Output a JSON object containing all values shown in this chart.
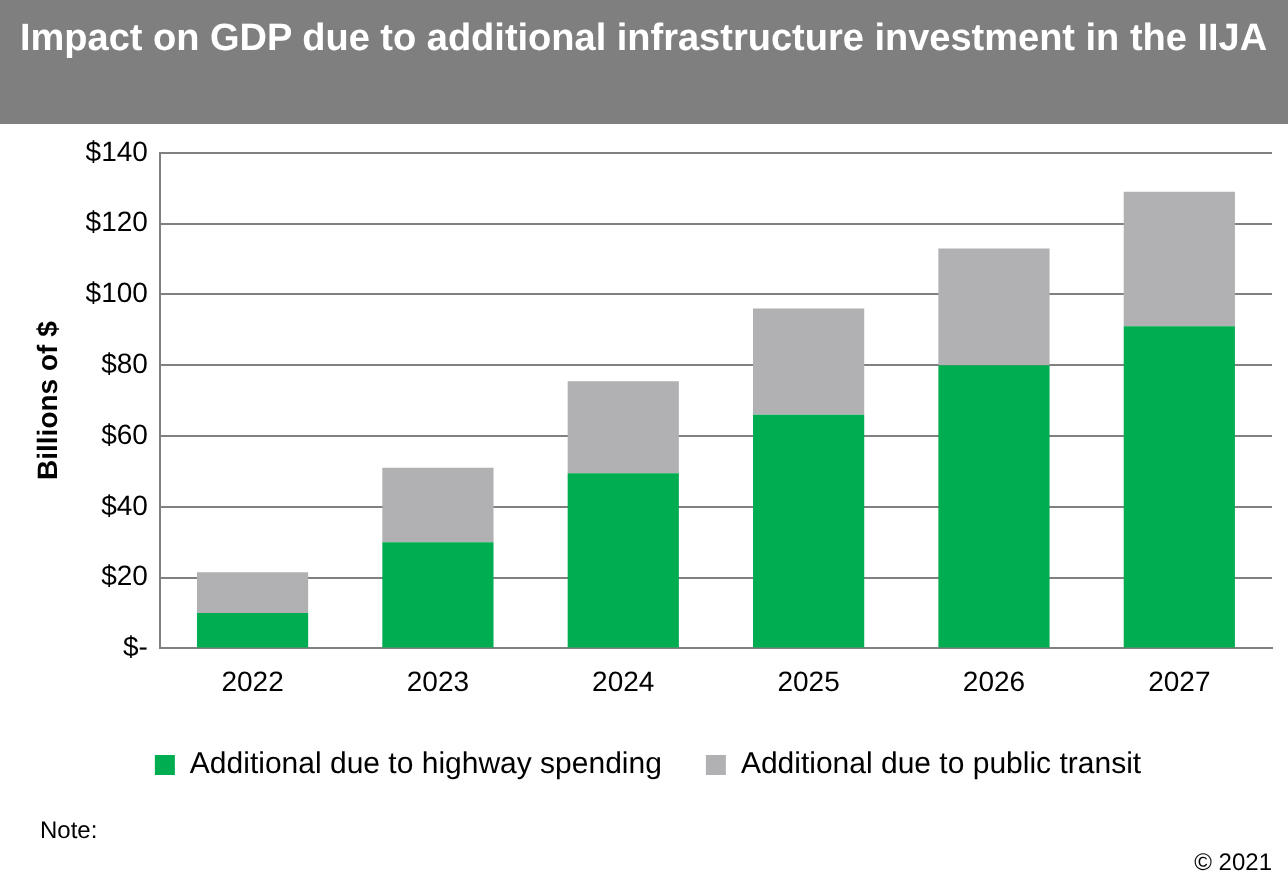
{
  "chart_data": {
    "type": "bar",
    "title": "Impact on GDP due to additional infrastructure investment in the IIJA",
    "ylabel": "Billions of $",
    "categories": [
      "2022",
      "2023",
      "2024",
      "2025",
      "2026",
      "2027"
    ],
    "stacked": true,
    "series": [
      {
        "name": "Additional due to highway spending",
        "color": "#00ad50",
        "values": [
          10,
          30,
          49.5,
          66,
          80,
          91
        ]
      },
      {
        "name": "Additional due to public transit",
        "color": "#b1b1b4",
        "values": [
          11.5,
          21,
          26,
          30,
          33,
          38
        ]
      }
    ],
    "ylim": [
      0,
      140
    ],
    "yticks": [
      {
        "value": 0,
        "label": "$-"
      },
      {
        "value": 20,
        "label": "$20"
      },
      {
        "value": 40,
        "label": "$40"
      },
      {
        "value": 60,
        "label": "$60"
      },
      {
        "value": 80,
        "label": "$80"
      },
      {
        "value": 100,
        "label": "$100"
      },
      {
        "value": 120,
        "label": "$120"
      },
      {
        "value": 140,
        "label": "$140"
      }
    ],
    "grid": "y",
    "legend": "bottom",
    "annotations": [
      "Note:",
      "© 2021"
    ]
  }
}
